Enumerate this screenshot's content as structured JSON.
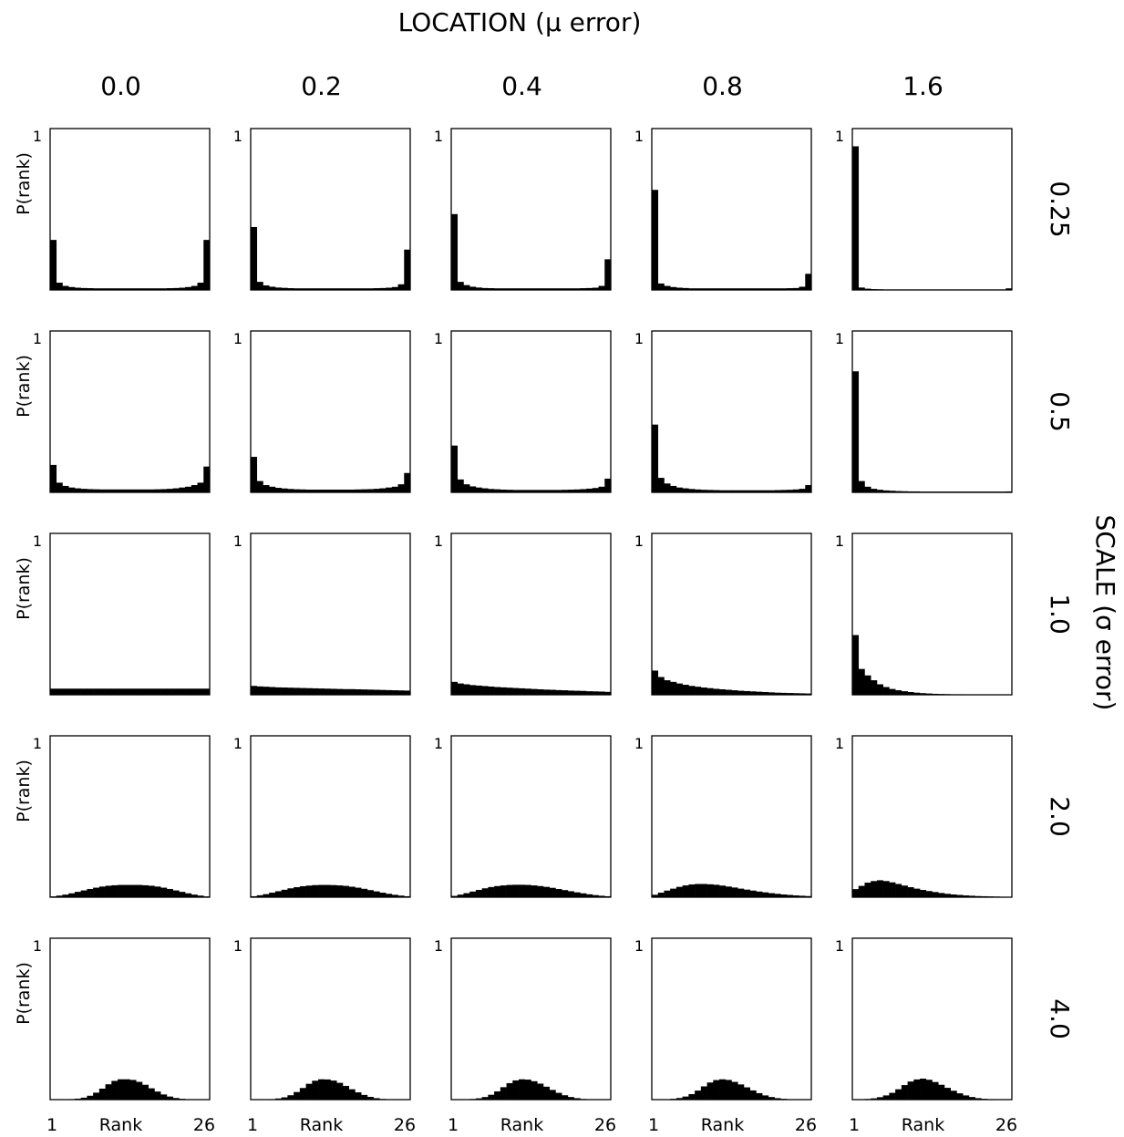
{
  "figure": {
    "top_title": "LOCATION (μ error)",
    "right_title": "SCALE (σ error)",
    "column_labels": [
      "0.0",
      "0.2",
      "0.4",
      "0.8",
      "1.6"
    ],
    "row_labels": [
      "0.25",
      "0.5",
      "1.0",
      "2.0",
      "4.0"
    ],
    "ylabel": "P(rank)",
    "y_top_tick": "1",
    "xlabel": "Rank",
    "x_tick_first": "1",
    "x_tick_last": "26"
  },
  "chart_data": {
    "type": "bar",
    "description_of_grid": "5x5 grid of rank histograms; rows = scale error, columns = location error",
    "ylim": [
      0,
      1
    ],
    "n_bins": 26,
    "grid": false,
    "panels": [
      [
        {
          "values": [
            0.31,
            0.045,
            0.025,
            0.018,
            0.014,
            0.012,
            0.011,
            0.01,
            0.01,
            0.01,
            0.01,
            0.01,
            0.01,
            0.01,
            0.01,
            0.01,
            0.01,
            0.01,
            0.01,
            0.011,
            0.012,
            0.014,
            0.018,
            0.025,
            0.045,
            0.31
          ]
        },
        {
          "values": [
            0.39,
            0.05,
            0.028,
            0.02,
            0.015,
            0.013,
            0.011,
            0.01,
            0.01,
            0.01,
            0.01,
            0.01,
            0.01,
            0.01,
            0.01,
            0.01,
            0.01,
            0.01,
            0.01,
            0.01,
            0.011,
            0.012,
            0.014,
            0.018,
            0.035,
            0.25
          ]
        },
        {
          "values": [
            0.47,
            0.05,
            0.03,
            0.02,
            0.015,
            0.012,
            0.011,
            0.01,
            0.01,
            0.01,
            0.01,
            0.01,
            0.01,
            0.01,
            0.01,
            0.01,
            0.01,
            0.01,
            0.01,
            0.01,
            0.01,
            0.011,
            0.012,
            0.014,
            0.025,
            0.19
          ]
        },
        {
          "values": [
            0.62,
            0.04,
            0.025,
            0.018,
            0.014,
            0.012,
            0.01,
            0.01,
            0.01,
            0.01,
            0.01,
            0.01,
            0.01,
            0.01,
            0.01,
            0.01,
            0.01,
            0.01,
            0.01,
            0.01,
            0.01,
            0.01,
            0.011,
            0.012,
            0.02,
            0.1
          ]
        },
        {
          "values": [
            0.89,
            0.015,
            0.008,
            0.005,
            0.004,
            0.003,
            0.003,
            0.003,
            0.003,
            0.003,
            0.003,
            0.003,
            0.003,
            0.003,
            0.003,
            0.003,
            0.003,
            0.003,
            0.003,
            0.003,
            0.003,
            0.003,
            0.003,
            0.003,
            0.003,
            0.01
          ]
        }
      ],
      [
        {
          "values": [
            0.17,
            0.06,
            0.04,
            0.03,
            0.025,
            0.022,
            0.02,
            0.019,
            0.018,
            0.018,
            0.018,
            0.018,
            0.018,
            0.018,
            0.018,
            0.018,
            0.018,
            0.019,
            0.02,
            0.022,
            0.025,
            0.03,
            0.035,
            0.045,
            0.06,
            0.16
          ]
        },
        {
          "values": [
            0.22,
            0.07,
            0.045,
            0.035,
            0.028,
            0.024,
            0.021,
            0.019,
            0.018,
            0.017,
            0.017,
            0.017,
            0.017,
            0.017,
            0.017,
            0.017,
            0.017,
            0.018,
            0.019,
            0.02,
            0.022,
            0.025,
            0.03,
            0.035,
            0.05,
            0.12
          ]
        },
        {
          "values": [
            0.29,
            0.08,
            0.05,
            0.037,
            0.03,
            0.025,
            0.021,
            0.019,
            0.017,
            0.016,
            0.015,
            0.015,
            0.015,
            0.015,
            0.015,
            0.015,
            0.015,
            0.015,
            0.016,
            0.017,
            0.018,
            0.02,
            0.023,
            0.027,
            0.035,
            0.085
          ]
        },
        {
          "values": [
            0.42,
            0.09,
            0.055,
            0.04,
            0.03,
            0.025,
            0.021,
            0.018,
            0.016,
            0.015,
            0.014,
            0.013,
            0.013,
            0.013,
            0.013,
            0.013,
            0.013,
            0.013,
            0.013,
            0.013,
            0.014,
            0.015,
            0.016,
            0.018,
            0.022,
            0.045
          ]
        },
        {
          "values": [
            0.75,
            0.07,
            0.035,
            0.022,
            0.016,
            0.012,
            0.01,
            0.008,
            0.007,
            0.006,
            0.006,
            0.005,
            0.005,
            0.005,
            0.005,
            0.005,
            0.005,
            0.005,
            0.005,
            0.005,
            0.005,
            0.005,
            0.005,
            0.005,
            0.005,
            0.006
          ]
        }
      ],
      [
        {
          "values": [
            0.038,
            0.038,
            0.038,
            0.038,
            0.038,
            0.038,
            0.038,
            0.038,
            0.038,
            0.038,
            0.038,
            0.038,
            0.038,
            0.038,
            0.038,
            0.038,
            0.038,
            0.038,
            0.038,
            0.038,
            0.038,
            0.038,
            0.038,
            0.038,
            0.038,
            0.038
          ]
        },
        {
          "values": [
            0.055,
            0.052,
            0.05,
            0.048,
            0.046,
            0.045,
            0.044,
            0.043,
            0.042,
            0.041,
            0.04,
            0.039,
            0.038,
            0.037,
            0.036,
            0.035,
            0.035,
            0.034,
            0.033,
            0.032,
            0.031,
            0.03,
            0.029,
            0.028,
            0.027,
            0.026
          ]
        },
        {
          "values": [
            0.08,
            0.07,
            0.065,
            0.06,
            0.057,
            0.054,
            0.051,
            0.048,
            0.046,
            0.044,
            0.042,
            0.04,
            0.038,
            0.036,
            0.034,
            0.032,
            0.031,
            0.029,
            0.028,
            0.026,
            0.025,
            0.024,
            0.022,
            0.021,
            0.02,
            0.018
          ]
        },
        {
          "values": [
            0.15,
            0.11,
            0.09,
            0.08,
            0.07,
            0.062,
            0.055,
            0.05,
            0.045,
            0.041,
            0.037,
            0.034,
            0.031,
            0.028,
            0.025,
            0.023,
            0.021,
            0.019,
            0.017,
            0.015,
            0.013,
            0.012,
            0.011,
            0.01,
            0.009,
            0.008
          ]
        },
        {
          "values": [
            0.37,
            0.16,
            0.12,
            0.09,
            0.065,
            0.048,
            0.036,
            0.028,
            0.022,
            0.017,
            0.013,
            0.01,
            0.008,
            0.006,
            0.005,
            0.004,
            0.003,
            0.003,
            0.002,
            0.002,
            0.002,
            0.001,
            0.001,
            0.001,
            0.001,
            0.001
          ]
        }
      ],
      [
        {
          "values": [
            0.005,
            0.01,
            0.016,
            0.024,
            0.033,
            0.042,
            0.051,
            0.059,
            0.066,
            0.071,
            0.074,
            0.076,
            0.076,
            0.076,
            0.076,
            0.074,
            0.071,
            0.066,
            0.059,
            0.051,
            0.042,
            0.033,
            0.024,
            0.016,
            0.01,
            0.005
          ]
        },
        {
          "values": [
            0.006,
            0.012,
            0.019,
            0.028,
            0.037,
            0.046,
            0.055,
            0.062,
            0.068,
            0.072,
            0.075,
            0.076,
            0.076,
            0.075,
            0.073,
            0.07,
            0.065,
            0.059,
            0.052,
            0.044,
            0.036,
            0.028,
            0.021,
            0.015,
            0.01,
            0.006
          ]
        },
        {
          "values": [
            0.008,
            0.016,
            0.025,
            0.035,
            0.045,
            0.055,
            0.063,
            0.069,
            0.073,
            0.076,
            0.077,
            0.077,
            0.076,
            0.073,
            0.069,
            0.064,
            0.058,
            0.051,
            0.044,
            0.037,
            0.03,
            0.024,
            0.018,
            0.013,
            0.009,
            0.006
          ]
        },
        {
          "values": [
            0.015,
            0.028,
            0.041,
            0.053,
            0.064,
            0.073,
            0.079,
            0.082,
            0.082,
            0.08,
            0.077,
            0.072,
            0.066,
            0.06,
            0.053,
            0.047,
            0.041,
            0.035,
            0.03,
            0.025,
            0.021,
            0.017,
            0.014,
            0.011,
            0.009,
            0.007
          ]
        },
        {
          "values": [
            0.05,
            0.07,
            0.09,
            0.1,
            0.105,
            0.1,
            0.092,
            0.082,
            0.072,
            0.062,
            0.053,
            0.045,
            0.038,
            0.032,
            0.026,
            0.021,
            0.017,
            0.014,
            0.011,
            0.009,
            0.007,
            0.006,
            0.005,
            0.004,
            0.003,
            0.002
          ]
        }
      ],
      [
        {
          "values": [
            0.0,
            0.0,
            0.001,
            0.003,
            0.006,
            0.012,
            0.024,
            0.043,
            0.068,
            0.095,
            0.116,
            0.126,
            0.126,
            0.122,
            0.11,
            0.092,
            0.07,
            0.05,
            0.032,
            0.019,
            0.01,
            0.005,
            0.002,
            0.001,
            0.0,
            0.0
          ]
        },
        {
          "values": [
            0.0,
            0.0,
            0.001,
            0.003,
            0.007,
            0.014,
            0.027,
            0.047,
            0.072,
            0.098,
            0.117,
            0.126,
            0.125,
            0.118,
            0.104,
            0.085,
            0.064,
            0.045,
            0.029,
            0.017,
            0.009,
            0.004,
            0.002,
            0.001,
            0.0,
            0.0
          ]
        },
        {
          "values": [
            0.0,
            0.0,
            0.001,
            0.004,
            0.008,
            0.016,
            0.03,
            0.051,
            0.077,
            0.102,
            0.119,
            0.126,
            0.124,
            0.114,
            0.099,
            0.08,
            0.06,
            0.042,
            0.027,
            0.016,
            0.009,
            0.004,
            0.002,
            0.001,
            0.0,
            0.0
          ]
        },
        {
          "values": [
            0.0,
            0.001,
            0.002,
            0.005,
            0.01,
            0.019,
            0.034,
            0.056,
            0.082,
            0.106,
            0.121,
            0.126,
            0.122,
            0.11,
            0.094,
            0.076,
            0.057,
            0.04,
            0.026,
            0.016,
            0.009,
            0.005,
            0.002,
            0.001,
            0.0,
            0.0
          ]
        },
        {
          "values": [
            0.001,
            0.002,
            0.004,
            0.008,
            0.015,
            0.026,
            0.042,
            0.064,
            0.09,
            0.112,
            0.125,
            0.13,
            0.123,
            0.109,
            0.092,
            0.073,
            0.055,
            0.039,
            0.026,
            0.016,
            0.009,
            0.005,
            0.003,
            0.001,
            0.001,
            0.0
          ]
        }
      ]
    ]
  }
}
